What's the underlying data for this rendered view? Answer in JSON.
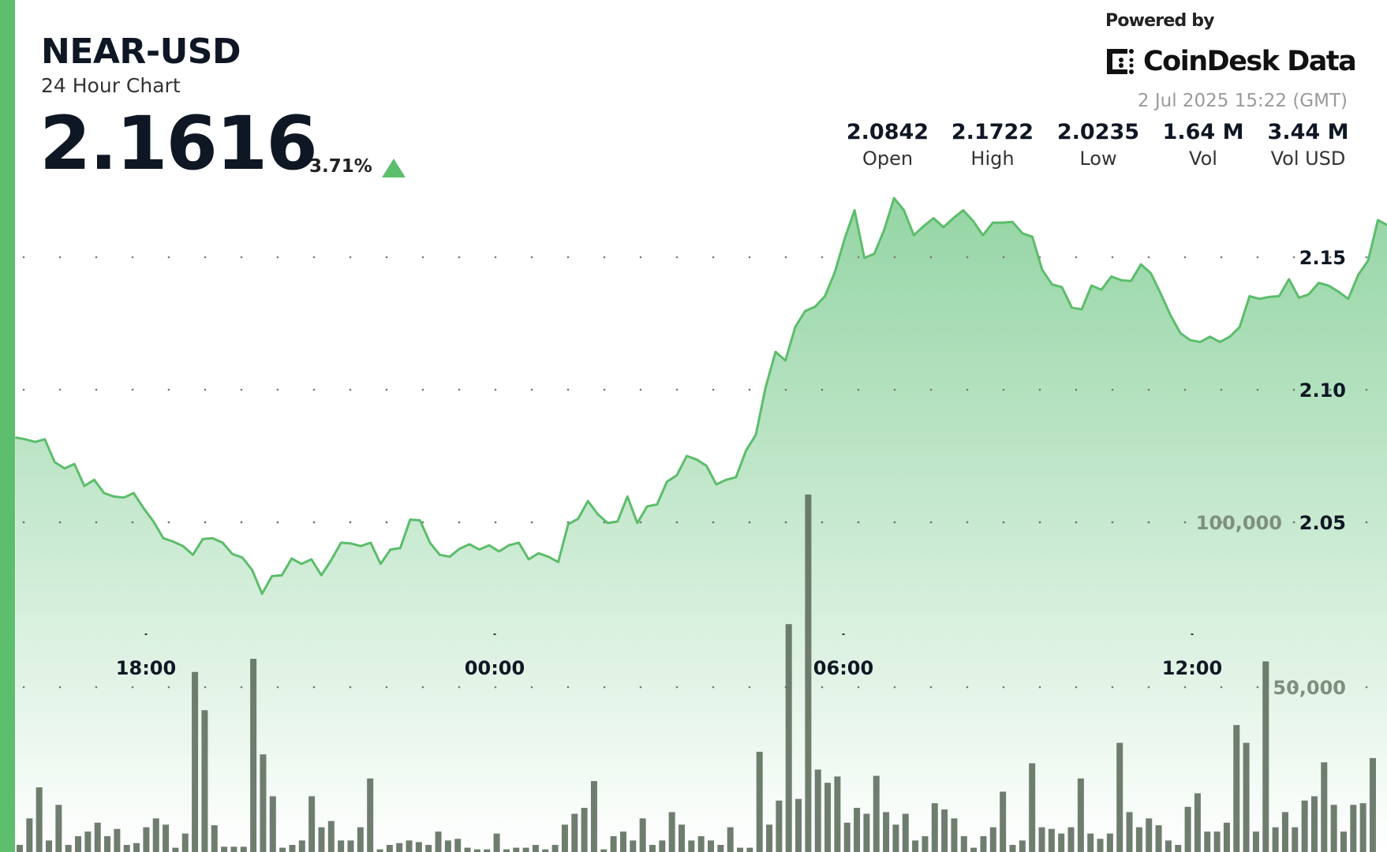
{
  "header": {
    "symbol": "NEAR-USD",
    "subtitle": "24 Hour Chart",
    "price": "2.1616",
    "change_pct": "3.71%",
    "change_direction": "up",
    "powered_by": "Powered by",
    "brand": "CoinDesk Data",
    "timestamp": "2 Jul 2025 15:22 (GMT)"
  },
  "stats": [
    {
      "value": "2.0842",
      "label": "Open"
    },
    {
      "value": "2.1722",
      "label": "High"
    },
    {
      "value": "2.0235",
      "label": "Low"
    },
    {
      "value": "1.64 M",
      "label": "Vol"
    },
    {
      "value": "3.44 M",
      "label": "Vol USD"
    }
  ],
  "colors": {
    "accent": "#5dbe6d",
    "line": "#5cbd6b",
    "fill_top": "#8fd3a0",
    "volume_bar": "#5f6f5f",
    "text": "#0f1724"
  },
  "chart_data": {
    "type": "line",
    "x_range": [
      "1 Jul 15:45",
      "2 Jul 15:22"
    ],
    "x_ticks": [
      "18:00",
      "00:00",
      "06:00",
      "12:00"
    ],
    "y_ticks": [
      "2.15",
      "2.10",
      "2.05"
    ],
    "y_tick_values": [
      2.15,
      2.1,
      2.05
    ],
    "ylim": [
      2.0,
      2.18
    ],
    "grid": "dotted",
    "series": [
      {
        "values": [
          2.082,
          2.0813,
          2.0803,
          2.0813,
          2.0727,
          2.0703,
          2.072,
          2.0637,
          2.066,
          2.061,
          2.0597,
          2.0593,
          2.061,
          2.0553,
          2.0503,
          2.044,
          2.0427,
          2.041,
          2.0377,
          2.0437,
          2.044,
          2.0423,
          2.038,
          2.0367,
          2.032,
          2.023,
          2.0297,
          2.03,
          2.0363,
          2.0343,
          2.036,
          2.03,
          2.0357,
          2.0423,
          2.042,
          2.041,
          2.0423,
          2.0343,
          2.0397,
          2.0403,
          2.051,
          2.0507,
          2.0423,
          2.0377,
          2.037,
          2.04,
          2.0417,
          2.0397,
          2.0413,
          2.039,
          2.0413,
          2.0423,
          2.036,
          2.0383,
          2.037,
          2.035,
          2.0493,
          2.0513,
          2.058,
          2.053,
          2.0497,
          2.0503,
          2.0597,
          2.0497,
          2.056,
          2.0567,
          2.0653,
          2.0677,
          2.075,
          2.0737,
          2.0713,
          2.0643,
          2.066,
          2.067,
          2.077,
          2.083,
          2.101,
          2.1143,
          2.111,
          2.1237,
          2.1297,
          2.1313,
          2.1353,
          2.1443,
          2.157,
          2.1677,
          2.1497,
          2.1513,
          2.1603,
          2.1723,
          2.1677,
          2.1583,
          2.1617,
          2.1647,
          2.1613,
          2.1647,
          2.1677,
          2.1637,
          2.1583,
          2.163,
          2.163,
          2.1633,
          2.159,
          2.1577,
          2.1453,
          2.1397,
          2.1387,
          2.131,
          2.1303,
          2.1393,
          2.1377,
          2.1427,
          2.1413,
          2.141,
          2.1473,
          2.144,
          2.1363,
          2.128,
          2.1213,
          2.1187,
          2.118,
          2.12,
          2.118,
          2.12,
          2.1237,
          2.1353,
          2.1343,
          2.135,
          2.1353,
          2.1417,
          2.1347,
          2.136,
          2.1403,
          2.1393,
          2.137,
          2.1343,
          2.1433,
          2.1487,
          2.164,
          2.162
        ]
      }
    ],
    "volume": {
      "type": "bar",
      "y_ticks": [
        "50,000",
        "100,000"
      ],
      "y_tick_values": [
        50000,
        100000
      ],
      "values": [
        2150,
        10200,
        19600,
        3500,
        14300,
        2150,
        4800,
        6200,
        8900,
        4800,
        7000,
        2150,
        2700,
        7500,
        10200,
        8300,
        1300,
        5600,
        54600,
        43000,
        8100,
        1600,
        1600,
        1600,
        58600,
        29600,
        16900,
        1300,
        2150,
        3500,
        16900,
        7500,
        9400,
        3500,
        3500,
        7500,
        22300,
        800,
        2150,
        2700,
        3500,
        3000,
        2150,
        6200,
        3500,
        4000,
        1300,
        800,
        800,
        5600,
        800,
        1300,
        1300,
        2150,
        800,
        2150,
        8300,
        11600,
        13400,
        21500,
        800,
        4800,
        6200,
        3500,
        10200,
        2150,
        3500,
        12100,
        8300,
        3500,
        4800,
        3500,
        2150,
        7500,
        1300,
        1300,
        30400,
        8300,
        15600,
        69100,
        16100,
        108400,
        25000,
        21000,
        22900,
        8900,
        13400,
        11600,
        23100,
        12100,
        8300,
        11600,
        3500,
        4800,
        14800,
        12900,
        10200,
        4800,
        1300,
        4800,
        7500,
        18300,
        2150,
        3500,
        26900,
        7500,
        7000,
        5600,
        7500,
        22300,
        5600,
        4000,
        5600,
        33100,
        12100,
        7500,
        10200,
        8100,
        3500,
        2150,
        13700,
        17800,
        6200,
        6200,
        8900,
        38500,
        33100,
        6200,
        57800,
        7500,
        12100,
        7500,
        15600,
        16900,
        27200,
        14300,
        6200,
        14300,
        14800,
        28500
      ]
    }
  }
}
